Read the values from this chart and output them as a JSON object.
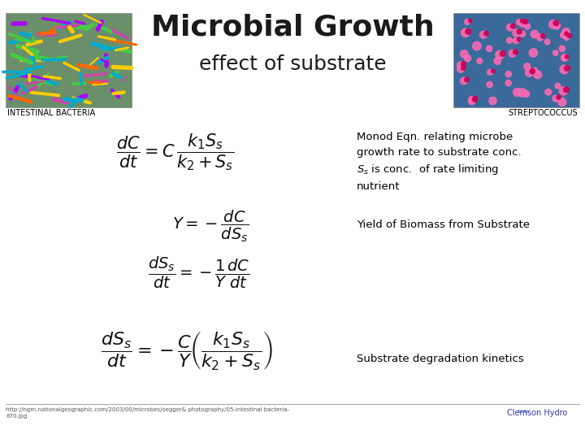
{
  "title_main": "Microbial Growth",
  "title_sub": "effect of substrate",
  "label_left": "INTESTINAL BACTERIA",
  "label_right": "STREPTOCOCCUS",
  "note1": "Monod Eqn. relating microbe\ngrowth rate to substrate conc.\n$S_s$ is conc.  of rate limiting\nnutrient",
  "note2": "Yield of Biomass from Substrate",
  "note3": "Substrate degradation kinetics",
  "footer_url": "http://ngm.nationalgeographic.com/2003/00/microbes/oegger& photography/05-intestinal bacteria-\n670.jpg",
  "footer_right": "Clemson Hydro",
  "bg_color": "#ffffff",
  "text_color": "#000000",
  "title_color": "#1a1a1a",
  "footer_line_color": "#aaaaaa",
  "note_fontsize": 9.5,
  "eq_fontsize": 14
}
